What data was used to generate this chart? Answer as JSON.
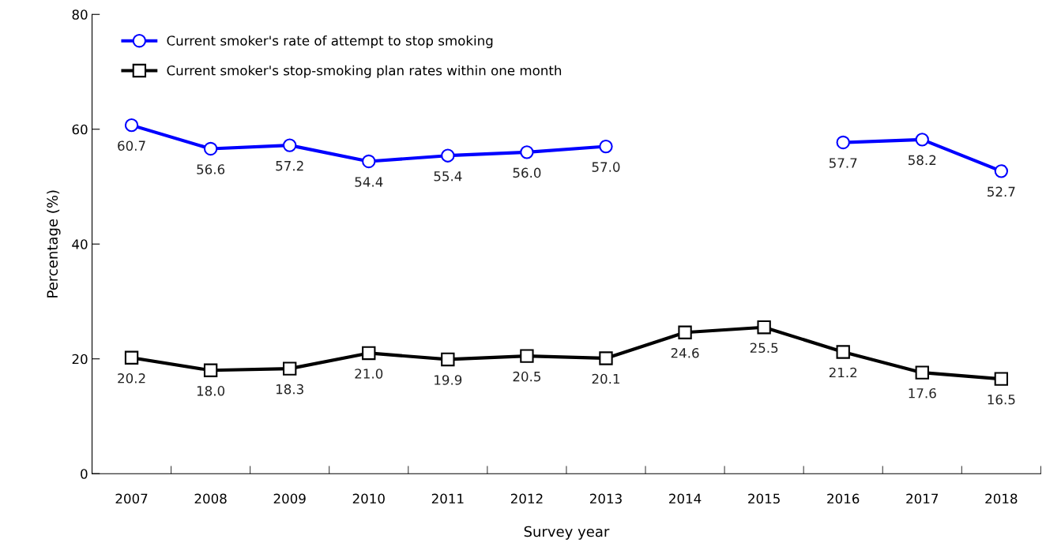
{
  "chart_data": {
    "type": "line",
    "xlabel": "Survey year",
    "ylabel": "Percentage (%)",
    "categories": [
      "2007",
      "2008",
      "2009",
      "2010",
      "2011",
      "2012",
      "2013",
      "2014",
      "2015",
      "2016",
      "2017",
      "2018"
    ],
    "series": [
      {
        "name": "Current smoker's rate of attempt to stop smoking",
        "color": "#0000ff",
        "marker": "circle",
        "values": [
          60.7,
          56.6,
          57.2,
          54.4,
          55.4,
          56.0,
          57.0,
          null,
          null,
          57.7,
          58.2,
          52.7
        ],
        "value_labels": [
          "60.7",
          "56.6",
          "57.2",
          "54.4",
          "55.4",
          "56.0",
          "57.0",
          null,
          null,
          "57.7",
          "58.2",
          "52.7"
        ]
      },
      {
        "name": "Current smoker's stop-smoking plan rates within one month",
        "color": "#000000",
        "marker": "square",
        "values": [
          20.2,
          18.0,
          18.3,
          21.0,
          19.9,
          20.5,
          20.1,
          24.6,
          25.5,
          21.2,
          17.6,
          16.5
        ],
        "value_labels": [
          "20.2",
          "18.0",
          "18.3",
          "21.0",
          "19.9",
          "20.5",
          "20.1",
          "24.6",
          "25.5",
          "21.2",
          "17.6",
          "16.5"
        ]
      }
    ],
    "ylim": [
      0,
      80
    ],
    "yticks": [
      0,
      20,
      40,
      60,
      80
    ],
    "grid": false,
    "legend": "top left",
    "line_style": "solid"
  }
}
